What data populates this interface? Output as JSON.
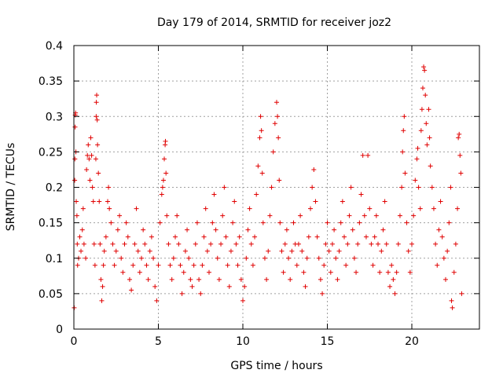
{
  "chart_data": {
    "type": "scatter",
    "title": "Day 179 of 2014, SRMTID for receiver joz2",
    "xlabel": "GPS time / hours",
    "ylabel": "SRMTID / TECUs",
    "xlim": [
      0,
      24
    ],
    "ylim": [
      0,
      0.4
    ],
    "xticks": [
      0,
      5,
      10,
      15,
      20
    ],
    "yticks": [
      0,
      0.05,
      0.1,
      0.15,
      0.2,
      0.25,
      0.3,
      0.35,
      0.4
    ],
    "xtick_labels": [
      "0",
      "5",
      "10",
      "15",
      "20"
    ],
    "ytick_labels": [
      "0",
      "0.05",
      "0.1",
      "0.15",
      "0.2",
      "0.25",
      "0.3",
      "0.35",
      "0.4"
    ],
    "grid": true,
    "marker": "+",
    "color": "#e00000",
    "series": [
      {
        "name": "joz2",
        "points": [
          [
            0.02,
            0.03
          ],
          [
            0.05,
            0.21
          ],
          [
            0.06,
            0.24
          ],
          [
            0.07,
            0.285
          ],
          [
            0.08,
            0.302
          ],
          [
            0.1,
            0.305
          ],
          [
            0.12,
            0.25
          ],
          [
            0.14,
            0.18
          ],
          [
            0.18,
            0.16
          ],
          [
            0.2,
            0.12
          ],
          [
            0.22,
            0.09
          ],
          [
            0.28,
            0.1
          ],
          [
            0.35,
            0.13
          ],
          [
            0.42,
            0.11
          ],
          [
            0.5,
            0.14
          ],
          [
            0.55,
            0.17
          ],
          [
            0.6,
            0.12
          ],
          [
            0.7,
            0.1
          ],
          [
            0.75,
            0.225
          ],
          [
            0.8,
            0.245
          ],
          [
            0.85,
            0.26
          ],
          [
            0.9,
            0.24
          ],
          [
            0.95,
            0.21
          ],
          [
            1.0,
            0.27
          ],
          [
            1.05,
            0.245
          ],
          [
            1.1,
            0.2
          ],
          [
            1.15,
            0.18
          ],
          [
            1.2,
            0.12
          ],
          [
            1.25,
            0.09
          ],
          [
            1.3,
            0.24
          ],
          [
            1.32,
            0.3
          ],
          [
            1.33,
            0.32
          ],
          [
            1.35,
            0.33
          ],
          [
            1.38,
            0.295
          ],
          [
            1.4,
            0.26
          ],
          [
            1.45,
            0.22
          ],
          [
            1.5,
            0.18
          ],
          [
            1.55,
            0.12
          ],
          [
            1.6,
            0.07
          ],
          [
            1.65,
            0.04
          ],
          [
            1.7,
            0.06
          ],
          [
            1.75,
            0.09
          ],
          [
            1.8,
            0.11
          ],
          [
            1.9,
            0.13
          ],
          [
            2.0,
            0.18
          ],
          [
            2.05,
            0.2
          ],
          [
            2.1,
            0.17
          ],
          [
            2.2,
            0.15
          ],
          [
            2.3,
            0.12
          ],
          [
            2.4,
            0.09
          ],
          [
            2.5,
            0.11
          ],
          [
            2.6,
            0.14
          ],
          [
            2.7,
            0.16
          ],
          [
            2.8,
            0.1
          ],
          [
            2.9,
            0.08
          ],
          [
            3.0,
            0.12
          ],
          [
            3.1,
            0.15
          ],
          [
            3.2,
            0.13
          ],
          [
            3.3,
            0.07
          ],
          [
            3.4,
            0.055
          ],
          [
            3.5,
            0.09
          ],
          [
            3.6,
            0.12
          ],
          [
            3.7,
            0.17
          ],
          [
            3.8,
            0.11
          ],
          [
            3.9,
            0.08
          ],
          [
            4.0,
            0.1
          ],
          [
            4.1,
            0.14
          ],
          [
            4.2,
            0.12
          ],
          [
            4.3,
            0.09
          ],
          [
            4.4,
            0.07
          ],
          [
            4.5,
            0.11
          ],
          [
            4.6,
            0.13
          ],
          [
            4.7,
            0.1
          ],
          [
            4.8,
            0.06
          ],
          [
            4.9,
            0.04
          ],
          [
            5.0,
            0.09
          ],
          [
            5.1,
            0.15
          ],
          [
            5.2,
            0.19
          ],
          [
            5.25,
            0.2
          ],
          [
            5.3,
            0.21
          ],
          [
            5.35,
            0.24
          ],
          [
            5.4,
            0.26
          ],
          [
            5.42,
            0.265
          ],
          [
            5.45,
            0.22
          ],
          [
            5.5,
            0.16
          ],
          [
            5.6,
            0.12
          ],
          [
            5.7,
            0.09
          ],
          [
            5.8,
            0.07
          ],
          [
            5.9,
            0.1
          ],
          [
            6.0,
            0.13
          ],
          [
            6.1,
            0.16
          ],
          [
            6.2,
            0.12
          ],
          [
            6.3,
            0.09
          ],
          [
            6.4,
            0.05
          ],
          [
            6.5,
            0.08
          ],
          [
            6.6,
            0.11
          ],
          [
            6.7,
            0.14
          ],
          [
            6.8,
            0.1
          ],
          [
            6.9,
            0.07
          ],
          [
            7.0,
            0.06
          ],
          [
            7.1,
            0.09
          ],
          [
            7.2,
            0.12
          ],
          [
            7.3,
            0.15
          ],
          [
            7.4,
            0.07
          ],
          [
            7.5,
            0.05
          ],
          [
            7.6,
            0.09
          ],
          [
            7.7,
            0.13
          ],
          [
            7.8,
            0.17
          ],
          [
            7.9,
            0.11
          ],
          [
            8.0,
            0.08
          ],
          [
            8.1,
            0.12
          ],
          [
            8.2,
            0.15
          ],
          [
            8.3,
            0.19
          ],
          [
            8.4,
            0.14
          ],
          [
            8.5,
            0.1
          ],
          [
            8.6,
            0.07
          ],
          [
            8.7,
            0.12
          ],
          [
            8.8,
            0.16
          ],
          [
            8.9,
            0.2
          ],
          [
            9.0,
            0.13
          ],
          [
            9.1,
            0.09
          ],
          [
            9.2,
            0.06
          ],
          [
            9.3,
            0.11
          ],
          [
            9.4,
            0.15
          ],
          [
            9.5,
            0.18
          ],
          [
            9.6,
            0.12
          ],
          [
            9.7,
            0.09
          ],
          [
            9.8,
            0.13
          ],
          [
            9.9,
            0.07
          ],
          [
            10.0,
            0.04
          ],
          [
            10.1,
            0.06
          ],
          [
            10.2,
            0.1
          ],
          [
            10.3,
            0.14
          ],
          [
            10.4,
            0.17
          ],
          [
            10.5,
            0.12
          ],
          [
            10.6,
            0.09
          ],
          [
            10.7,
            0.13
          ],
          [
            10.8,
            0.19
          ],
          [
            10.9,
            0.23
          ],
          [
            11.0,
            0.27
          ],
          [
            11.05,
            0.3
          ],
          [
            11.1,
            0.28
          ],
          [
            11.15,
            0.22
          ],
          [
            11.2,
            0.15
          ],
          [
            11.3,
            0.1
          ],
          [
            11.4,
            0.07
          ],
          [
            11.5,
            0.11
          ],
          [
            11.6,
            0.16
          ],
          [
            11.7,
            0.2
          ],
          [
            11.8,
            0.25
          ],
          [
            11.9,
            0.29
          ],
          [
            12.0,
            0.32
          ],
          [
            12.05,
            0.3
          ],
          [
            12.1,
            0.27
          ],
          [
            12.15,
            0.21
          ],
          [
            12.2,
            0.15
          ],
          [
            12.3,
            0.11
          ],
          [
            12.4,
            0.08
          ],
          [
            12.5,
            0.12
          ],
          [
            12.6,
            0.14
          ],
          [
            12.7,
            0.1
          ],
          [
            12.8,
            0.07
          ],
          [
            12.9,
            0.11
          ],
          [
            13.0,
            0.15
          ],
          [
            13.1,
            0.12
          ],
          [
            13.2,
            0.09
          ],
          [
            13.3,
            0.12
          ],
          [
            13.4,
            0.16
          ],
          [
            13.5,
            0.11
          ],
          [
            13.6,
            0.08
          ],
          [
            13.7,
            0.06
          ],
          [
            13.8,
            0.1
          ],
          [
            13.9,
            0.13
          ],
          [
            14.0,
            0.17
          ],
          [
            14.1,
            0.2
          ],
          [
            14.2,
            0.225
          ],
          [
            14.3,
            0.18
          ],
          [
            14.4,
            0.13
          ],
          [
            14.5,
            0.1
          ],
          [
            14.6,
            0.07
          ],
          [
            14.7,
            0.05
          ],
          [
            14.8,
            0.09
          ],
          [
            14.9,
            0.12
          ],
          [
            15.0,
            0.15
          ],
          [
            15.1,
            0.11
          ],
          [
            15.2,
            0.08
          ],
          [
            15.3,
            0.12
          ],
          [
            15.4,
            0.14
          ],
          [
            15.5,
            0.1
          ],
          [
            15.6,
            0.07
          ],
          [
            15.7,
            0.11
          ],
          [
            15.8,
            0.15
          ],
          [
            15.9,
            0.18
          ],
          [
            16.0,
            0.13
          ],
          [
            16.1,
            0.09
          ],
          [
            16.2,
            0.12
          ],
          [
            16.3,
            0.16
          ],
          [
            16.4,
            0.2
          ],
          [
            16.5,
            0.14
          ],
          [
            16.6,
            0.1
          ],
          [
            16.7,
            0.08
          ],
          [
            16.8,
            0.12
          ],
          [
            16.9,
            0.15
          ],
          [
            17.0,
            0.19
          ],
          [
            17.1,
            0.245
          ],
          [
            17.2,
            0.16
          ],
          [
            17.3,
            0.13
          ],
          [
            17.4,
            0.245
          ],
          [
            17.5,
            0.17
          ],
          [
            17.6,
            0.12
          ],
          [
            17.7,
            0.09
          ],
          [
            17.8,
            0.13
          ],
          [
            17.9,
            0.16
          ],
          [
            18.0,
            0.12
          ],
          [
            18.1,
            0.08
          ],
          [
            18.2,
            0.11
          ],
          [
            18.3,
            0.14
          ],
          [
            18.4,
            0.18
          ],
          [
            18.5,
            0.12
          ],
          [
            18.6,
            0.08
          ],
          [
            18.7,
            0.06
          ],
          [
            18.8,
            0.09
          ],
          [
            18.9,
            0.07
          ],
          [
            19.0,
            0.05
          ],
          [
            19.1,
            0.08
          ],
          [
            19.2,
            0.12
          ],
          [
            19.3,
            0.16
          ],
          [
            19.4,
            0.2
          ],
          [
            19.45,
            0.25
          ],
          [
            19.5,
            0.28
          ],
          [
            19.55,
            0.3
          ],
          [
            19.6,
            0.22
          ],
          [
            19.7,
            0.15
          ],
          [
            19.8,
            0.11
          ],
          [
            19.9,
            0.08
          ],
          [
            20.0,
            0.12
          ],
          [
            20.1,
            0.16
          ],
          [
            20.2,
            0.21
          ],
          [
            20.3,
            0.24
          ],
          [
            20.35,
            0.255
          ],
          [
            20.4,
            0.2
          ],
          [
            20.5,
            0.17
          ],
          [
            20.55,
            0.28
          ],
          [
            20.6,
            0.31
          ],
          [
            20.65,
            0.34
          ],
          [
            20.7,
            0.37
          ],
          [
            20.75,
            0.365
          ],
          [
            20.8,
            0.33
          ],
          [
            20.85,
            0.29
          ],
          [
            20.9,
            0.26
          ],
          [
            21.0,
            0.31
          ],
          [
            21.05,
            0.27
          ],
          [
            21.1,
            0.23
          ],
          [
            21.2,
            0.2
          ],
          [
            21.3,
            0.17
          ],
          [
            21.4,
            0.12
          ],
          [
            21.5,
            0.09
          ],
          [
            21.6,
            0.14
          ],
          [
            21.7,
            0.18
          ],
          [
            21.8,
            0.13
          ],
          [
            21.9,
            0.1
          ],
          [
            22.0,
            0.07
          ],
          [
            22.1,
            0.11
          ],
          [
            22.2,
            0.15
          ],
          [
            22.3,
            0.2
          ],
          [
            22.35,
            0.04
          ],
          [
            22.4,
            0.03
          ],
          [
            22.5,
            0.08
          ],
          [
            22.6,
            0.12
          ],
          [
            22.7,
            0.17
          ],
          [
            22.75,
            0.27
          ],
          [
            22.8,
            0.275
          ],
          [
            22.85,
            0.245
          ],
          [
            22.9,
            0.22
          ],
          [
            22.95,
            0.05
          ]
        ]
      }
    ]
  }
}
